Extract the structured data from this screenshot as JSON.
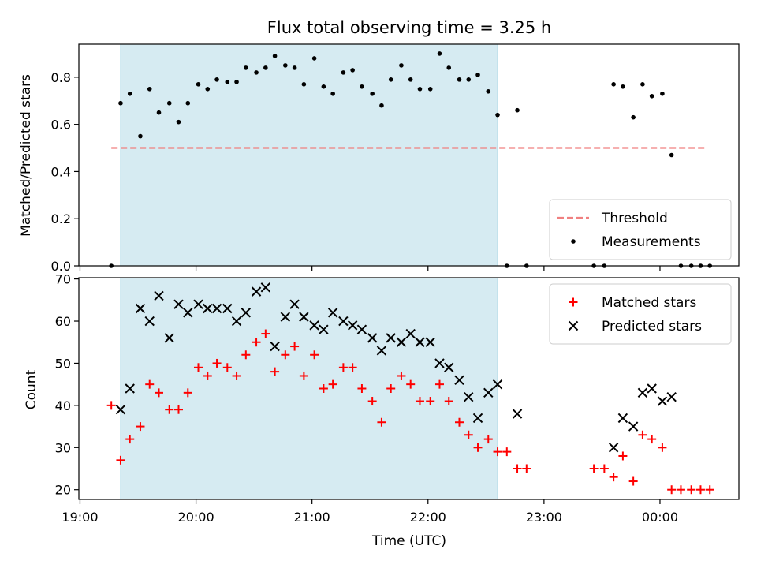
{
  "chart_data": [
    {
      "type": "scatter",
      "title": "Flux total observing time = 3.25 h",
      "xlabel": "",
      "ylabel": "Matched/Predicted stars",
      "ylim": [
        0,
        0.94
      ],
      "yticks": [
        "0.0",
        "0.2",
        "0.4",
        "0.6",
        "0.8"
      ],
      "ytick_values": [
        0,
        0.2,
        0.4,
        0.6,
        0.8
      ],
      "xticks": [
        "19:00",
        "20:00",
        "21:00",
        "22:00",
        "23:00",
        "00:00"
      ],
      "xtick_values": [
        19,
        20,
        21,
        22,
        23,
        24
      ],
      "xlim": [
        18.99,
        24.68
      ],
      "grid": false,
      "legend": "bottom-right",
      "shaded_interval": [
        19.35,
        22.6
      ],
      "threshold": {
        "name": "Threshold",
        "y": 0.5,
        "x_range": [
          19.27,
          24.4
        ],
        "color": "#f08080"
      },
      "series": [
        {
          "name": "Measurements",
          "color": "#000000",
          "points": [
            [
              19.27,
              0.0
            ],
            [
              19.35,
              0.69
            ],
            [
              19.43,
              0.73
            ],
            [
              19.52,
              0.55
            ],
            [
              19.6,
              0.75
            ],
            [
              19.68,
              0.65
            ],
            [
              19.77,
              0.69
            ],
            [
              19.85,
              0.61
            ],
            [
              19.93,
              0.69
            ],
            [
              20.02,
              0.77
            ],
            [
              20.1,
              0.75
            ],
            [
              20.18,
              0.79
            ],
            [
              20.27,
              0.78
            ],
            [
              20.35,
              0.78
            ],
            [
              20.43,
              0.84
            ],
            [
              20.52,
              0.82
            ],
            [
              20.6,
              0.84
            ],
            [
              20.68,
              0.89
            ],
            [
              20.77,
              0.85
            ],
            [
              20.85,
              0.84
            ],
            [
              20.93,
              0.77
            ],
            [
              21.02,
              0.88
            ],
            [
              21.1,
              0.76
            ],
            [
              21.18,
              0.73
            ],
            [
              21.27,
              0.82
            ],
            [
              21.35,
              0.83
            ],
            [
              21.43,
              0.76
            ],
            [
              21.52,
              0.73
            ],
            [
              21.6,
              0.68
            ],
            [
              21.68,
              0.79
            ],
            [
              21.77,
              0.85
            ],
            [
              21.85,
              0.79
            ],
            [
              21.93,
              0.75
            ],
            [
              22.02,
              0.75
            ],
            [
              22.1,
              0.9
            ],
            [
              22.18,
              0.84
            ],
            [
              22.27,
              0.79
            ],
            [
              22.35,
              0.79
            ],
            [
              22.43,
              0.81
            ],
            [
              22.52,
              0.74
            ],
            [
              22.6,
              0.64
            ],
            [
              22.68,
              0.0
            ],
            [
              22.77,
              0.66
            ],
            [
              22.85,
              0.0
            ],
            [
              23.43,
              0.0
            ],
            [
              23.52,
              0.0
            ],
            [
              23.6,
              0.77
            ],
            [
              23.68,
              0.76
            ],
            [
              23.77,
              0.63
            ],
            [
              23.85,
              0.77
            ],
            [
              23.93,
              0.72
            ],
            [
              24.02,
              0.73
            ],
            [
              24.1,
              0.47
            ],
            [
              24.18,
              0.0
            ],
            [
              24.27,
              0.0
            ],
            [
              24.35,
              0.0
            ],
            [
              24.43,
              0.0
            ]
          ]
        }
      ]
    },
    {
      "type": "scatter",
      "title": "",
      "xlabel": "Time (UTC)",
      "ylabel": "Count",
      "ylim": [
        17.7,
        70.3
      ],
      "yticks": [
        "20",
        "30",
        "40",
        "50",
        "60",
        "70"
      ],
      "ytick_values": [
        20,
        30,
        40,
        50,
        60,
        70
      ],
      "xticks": [
        "19:00",
        "20:00",
        "21:00",
        "22:00",
        "23:00",
        "00:00"
      ],
      "xtick_values": [
        19,
        20,
        21,
        22,
        23,
        24
      ],
      "xlim": [
        18.99,
        24.68
      ],
      "grid": false,
      "legend": "top-right",
      "shaded_interval": [
        19.35,
        22.6
      ],
      "series": [
        {
          "name": "Matched stars",
          "marker": "plus",
          "color": "#ff0000",
          "points": [
            [
              19.27,
              40
            ],
            [
              19.35,
              27
            ],
            [
              19.43,
              32
            ],
            [
              19.52,
              35
            ],
            [
              19.6,
              45
            ],
            [
              19.68,
              43
            ],
            [
              19.77,
              39
            ],
            [
              19.85,
              39
            ],
            [
              19.93,
              43
            ],
            [
              20.02,
              49
            ],
            [
              20.1,
              47
            ],
            [
              20.18,
              50
            ],
            [
              20.27,
              49
            ],
            [
              20.35,
              47
            ],
            [
              20.43,
              52
            ],
            [
              20.52,
              55
            ],
            [
              20.6,
              57
            ],
            [
              20.68,
              48
            ],
            [
              20.77,
              52
            ],
            [
              20.85,
              54
            ],
            [
              20.93,
              47
            ],
            [
              21.02,
              52
            ],
            [
              21.1,
              44
            ],
            [
              21.18,
              45
            ],
            [
              21.27,
              49
            ],
            [
              21.35,
              49
            ],
            [
              21.43,
              44
            ],
            [
              21.52,
              41
            ],
            [
              21.6,
              36
            ],
            [
              21.68,
              44
            ],
            [
              21.77,
              47
            ],
            [
              21.85,
              45
            ],
            [
              21.93,
              41
            ],
            [
              22.02,
              41
            ],
            [
              22.1,
              45
            ],
            [
              22.18,
              41
            ],
            [
              22.27,
              36
            ],
            [
              22.35,
              33
            ],
            [
              22.43,
              30
            ],
            [
              22.52,
              32
            ],
            [
              22.6,
              29
            ],
            [
              22.68,
              29
            ],
            [
              22.77,
              25
            ],
            [
              22.85,
              25
            ],
            [
              23.43,
              25
            ],
            [
              23.52,
              25
            ],
            [
              23.6,
              23
            ],
            [
              23.68,
              28
            ],
            [
              23.77,
              22
            ],
            [
              23.85,
              33
            ],
            [
              23.93,
              32
            ],
            [
              24.02,
              30
            ],
            [
              24.1,
              20
            ],
            [
              24.18,
              20
            ],
            [
              24.27,
              20
            ],
            [
              24.35,
              20
            ],
            [
              24.43,
              20
            ]
          ]
        },
        {
          "name": "Predicted stars",
          "marker": "x",
          "color": "#000000",
          "points": [
            [
              19.35,
              39
            ],
            [
              19.43,
              44
            ],
            [
              19.52,
              63
            ],
            [
              19.6,
              60
            ],
            [
              19.68,
              66
            ],
            [
              19.77,
              56
            ],
            [
              19.85,
              64
            ],
            [
              19.93,
              62
            ],
            [
              20.02,
              64
            ],
            [
              20.1,
              63
            ],
            [
              20.18,
              63
            ],
            [
              20.27,
              63
            ],
            [
              20.35,
              60
            ],
            [
              20.43,
              62
            ],
            [
              20.52,
              67
            ],
            [
              20.6,
              68
            ],
            [
              20.68,
              54
            ],
            [
              20.77,
              61
            ],
            [
              20.85,
              64
            ],
            [
              20.93,
              61
            ],
            [
              21.02,
              59
            ],
            [
              21.1,
              58
            ],
            [
              21.18,
              62
            ],
            [
              21.27,
              60
            ],
            [
              21.35,
              59
            ],
            [
              21.43,
              58
            ],
            [
              21.52,
              56
            ],
            [
              21.6,
              53
            ],
            [
              21.68,
              56
            ],
            [
              21.77,
              55
            ],
            [
              21.85,
              57
            ],
            [
              21.93,
              55
            ],
            [
              22.02,
              55
            ],
            [
              22.1,
              50
            ],
            [
              22.18,
              49
            ],
            [
              22.27,
              46
            ],
            [
              22.35,
              42
            ],
            [
              22.43,
              37
            ],
            [
              22.52,
              43
            ],
            [
              22.6,
              45
            ],
            [
              22.77,
              38
            ],
            [
              23.6,
              30
            ],
            [
              23.68,
              37
            ],
            [
              23.77,
              35
            ],
            [
              23.85,
              43
            ],
            [
              23.93,
              44
            ],
            [
              24.02,
              41
            ],
            [
              24.1,
              42
            ]
          ]
        }
      ]
    }
  ]
}
